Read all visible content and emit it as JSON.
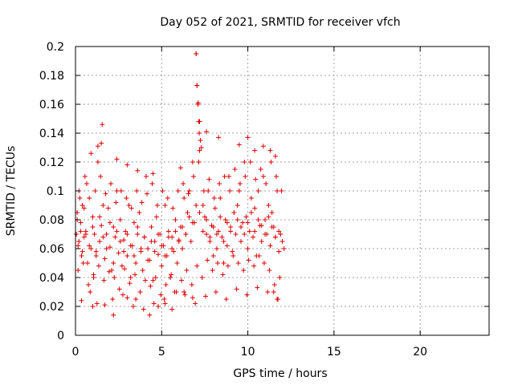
{
  "chart_data": {
    "type": "scatter",
    "title": "Day 052 of 2021, SRMTID for receiver vfch",
    "xlabel": "GPS time / hours",
    "ylabel": "SRMTID / TECUs",
    "xlim": [
      0,
      24
    ],
    "ylim": [
      0,
      0.2
    ],
    "xticks": [
      0,
      5,
      10,
      15,
      20
    ],
    "xtick_labels": [
      "0",
      "5",
      "10",
      "15",
      "20"
    ],
    "yticks": [
      0,
      0.02,
      0.04,
      0.06,
      0.08,
      0.1,
      0.12,
      0.14,
      0.16,
      0.18,
      0.2
    ],
    "ytick_labels": [
      "0",
      "0.02",
      "0.04",
      "0.06",
      "0.08",
      "0.1",
      "0.12",
      "0.14",
      "0.16",
      "0.18",
      "0.2"
    ],
    "grid": true,
    "series": [
      {
        "name": "SRMTID",
        "color": "#dd0000",
        "marker": "+",
        "x": [
          0.05,
          0.1,
          0.15,
          0.2,
          0.3,
          0.35,
          0.4,
          0.5,
          0.55,
          0.6,
          0.7,
          0.8,
          0.9,
          1.0,
          1.05,
          1.1,
          1.2,
          1.3,
          1.4,
          1.5,
          1.55,
          1.6,
          1.7,
          1.8,
          1.9,
          2.0,
          2.1,
          2.2,
          2.3,
          2.4,
          2.5,
          2.6,
          2.7,
          2.8,
          2.9,
          3.0,
          3.1,
          3.2,
          3.3,
          3.4,
          3.5,
          3.6,
          3.7,
          3.8,
          3.9,
          4.0,
          4.1,
          4.2,
          4.3,
          4.4,
          4.5,
          4.6,
          4.7,
          4.8,
          4.9,
          5.0,
          5.1,
          5.2,
          5.3,
          5.4,
          5.5,
          5.6,
          5.7,
          5.8,
          5.9,
          6.0,
          6.1,
          6.2,
          6.3,
          6.4,
          6.5,
          6.6,
          6.7,
          6.8,
          6.9,
          7.0,
          7.05,
          7.1,
          7.2,
          7.3,
          7.4,
          7.5,
          7.6,
          7.7,
          7.8,
          7.9,
          8.0,
          8.1,
          8.2,
          8.3,
          8.4,
          8.5,
          8.6,
          8.7,
          8.8,
          8.9,
          9.0,
          9.1,
          9.2,
          9.3,
          9.4,
          9.5,
          9.6,
          9.7,
          9.8,
          9.9,
          10.0,
          10.1,
          10.2,
          10.3,
          10.4,
          10.5,
          10.6,
          10.7,
          10.8,
          10.9,
          11.0,
          11.1,
          11.2,
          11.3,
          11.4,
          11.5,
          11.6,
          11.7,
          11.8,
          11.9,
          12.0,
          12.1,
          0.1,
          0.2,
          0.3,
          0.4,
          0.5,
          0.6,
          0.8,
          1.0,
          1.2,
          1.4,
          1.6,
          1.8,
          2.0,
          2.2,
          2.4,
          2.6,
          2.8,
          3.0,
          3.2,
          3.4,
          3.6,
          3.8,
          4.0,
          4.2,
          4.4,
          4.6,
          4.8,
          5.0,
          5.2,
          5.4,
          5.6,
          5.8,
          6.0,
          6.2,
          6.4,
          6.6,
          6.8,
          7.0,
          7.2,
          7.4,
          7.6,
          7.8,
          8.0,
          8.2,
          8.4,
          8.6,
          8.8,
          9.0,
          9.2,
          9.4,
          9.6,
          9.8,
          10.0,
          10.2,
          10.4,
          10.6,
          10.8,
          11.0,
          11.2,
          11.4,
          11.6,
          11.8,
          12.0,
          0.15,
          0.45,
          0.75,
          1.05,
          1.35,
          1.65,
          1.95,
          2.25,
          2.55,
          2.85,
          3.15,
          3.45,
          3.75,
          4.05,
          4.35,
          4.65,
          4.95,
          5.25,
          5.55,
          5.85,
          6.15,
          6.45,
          6.75,
          7.05,
          7.35,
          7.65,
          7.95,
          8.25,
          8.55,
          8.85,
          9.15,
          9.45,
          9.75,
          10.05,
          10.35,
          10.65,
          10.95,
          11.25,
          11.55,
          11.85,
          0.25,
          0.65,
          1.15,
          1.45,
          1.75,
          2.05,
          2.35,
          2.65,
          2.95,
          3.25,
          3.55,
          3.85,
          4.15,
          4.45,
          4.75,
          5.05,
          5.35,
          5.65,
          5.95,
          6.25,
          6.55,
          6.85,
          7.15,
          7.45,
          7.75,
          8.05,
          8.35,
          8.65,
          8.95,
          9.25,
          9.55,
          9.85,
          10.15,
          10.45,
          10.75,
          11.05,
          11.35,
          11.65,
          11.95,
          0.35,
          0.85,
          1.25,
          2.15,
          2.75,
          3.35,
          3.95,
          4.55,
          5.15,
          5.75,
          6.35,
          6.95,
          7.55,
          8.15,
          8.75,
          9.35,
          9.95,
          10.55,
          11.15,
          11.75,
          7.0,
          7.05,
          7.1,
          7.12,
          7.15,
          7.18,
          7.2,
          7.25,
          1.5,
          0.9,
          1.3,
          2.4,
          3.0,
          3.6,
          4.5,
          6.1,
          7.6,
          8.3,
          9.5,
          10.0,
          10.4,
          10.9,
          11.3,
          11.6,
          1.0,
          1.7,
          2.2,
          3.0,
          3.5,
          4.3,
          4.8,
          5.2,
          5.6,
          6.3,
          6.8,
          11.5,
          11.7
        ],
        "y": [
          0.07,
          0.085,
          0.062,
          0.1,
          0.078,
          0.055,
          0.09,
          0.068,
          0.11,
          0.072,
          0.05,
          0.095,
          0.06,
          0.082,
          0.04,
          0.07,
          0.058,
          0.12,
          0.065,
          0.076,
          0.146,
          0.09,
          0.053,
          0.07,
          0.088,
          0.061,
          0.045,
          0.075,
          0.068,
          0.1,
          0.057,
          0.08,
          0.048,
          0.066,
          0.072,
          0.055,
          0.09,
          0.04,
          0.062,
          0.078,
          0.05,
          0.07,
          0.085,
          0.058,
          0.045,
          0.068,
          0.11,
          0.06,
          0.052,
          0.075,
          0.038,
          0.065,
          0.082,
          0.056,
          0.07,
          0.048,
          0.062,
          0.09,
          0.055,
          0.072,
          0.04,
          0.068,
          0.058,
          0.08,
          0.05,
          0.066,
          0.075,
          0.06,
          0.095,
          0.07,
          0.085,
          0.1,
          0.065,
          0.12,
          0.078,
          0.195,
          0.173,
          0.16,
          0.148,
          0.13,
          0.09,
          0.082,
          0.07,
          0.1,
          0.065,
          0.076,
          0.055,
          0.088,
          0.06,
          0.072,
          0.095,
          0.068,
          0.05,
          0.08,
          0.062,
          0.11,
          0.075,
          0.058,
          0.085,
          0.07,
          0.09,
          0.1,
          0.065,
          0.078,
          0.12,
          0.082,
          0.06,
          0.072,
          0.095,
          0.068,
          0.088,
          0.055,
          0.1,
          0.076,
          0.065,
          0.11,
          0.08,
          0.07,
          0.09,
          0.062,
          0.085,
          0.075,
          0.068,
          0.1,
          0.058,
          0.07,
          0.065,
          0.06,
          0.08,
          0.065,
          0.072,
          0.058,
          0.088,
          0.07,
          0.062,
          0.075,
          0.055,
          0.082,
          0.068,
          0.06,
          0.078,
          0.05,
          0.072,
          0.065,
          0.058,
          0.07,
          0.062,
          0.055,
          0.075,
          0.06,
          0.068,
          0.052,
          0.065,
          0.058,
          0.07,
          0.062,
          0.055,
          0.068,
          0.06,
          0.072,
          0.065,
          0.075,
          0.07,
          0.082,
          0.078,
          0.09,
          0.085,
          0.072,
          0.08,
          0.068,
          0.075,
          0.07,
          0.082,
          0.065,
          0.078,
          0.072,
          0.085,
          0.08,
          0.075,
          0.07,
          0.078,
          0.085,
          0.072,
          0.08,
          0.076,
          0.07,
          0.082,
          0.075,
          0.068,
          0.072,
          0.065,
          0.045,
          0.05,
          0.035,
          0.042,
          0.048,
          0.038,
          0.044,
          0.04,
          0.032,
          0.046,
          0.036,
          0.042,
          0.03,
          0.038,
          0.034,
          0.04,
          0.028,
          0.035,
          0.042,
          0.03,
          0.038,
          0.045,
          0.035,
          0.048,
          0.04,
          0.052,
          0.045,
          0.05,
          0.042,
          0.048,
          0.055,
          0.05,
          0.045,
          0.052,
          0.048,
          0.055,
          0.05,
          0.045,
          0.035,
          0.04,
          0.095,
          0.105,
          0.1,
          0.11,
          0.098,
          0.105,
          0.092,
          0.1,
          0.095,
          0.088,
          0.1,
          0.092,
          0.098,
          0.105,
          0.09,
          0.1,
          0.095,
          0.088,
          0.1,
          0.105,
          0.098,
          0.11,
          0.12,
          0.1,
          0.108,
          0.095,
          0.105,
          0.11,
          0.1,
          0.115,
          0.105,
          0.11,
          0.12,
          0.108,
          0.115,
          0.105,
          0.12,
          0.11,
          0.1,
          0.024,
          0.03,
          0.022,
          0.025,
          0.028,
          0.02,
          0.018,
          0.022,
          0.025,
          0.03,
          0.028,
          0.022,
          0.027,
          0.03,
          0.025,
          0.032,
          0.028,
          0.033,
          0.03,
          0.025,
          0.195,
          0.173,
          0.16,
          0.161,
          0.148,
          0.14,
          0.128,
          0.135,
          0.133,
          0.126,
          0.131,
          0.122,
          0.118,
          0.114,
          0.112,
          0.116,
          0.141,
          0.137,
          0.132,
          0.137,
          0.128,
          0.131,
          0.128,
          0.124,
          0.02,
          0.021,
          0.014,
          0.026,
          0.025,
          0.014,
          0.02,
          0.022,
          0.018,
          0.03,
          0.026,
          0.03,
          0.025
        ]
      }
    ]
  }
}
